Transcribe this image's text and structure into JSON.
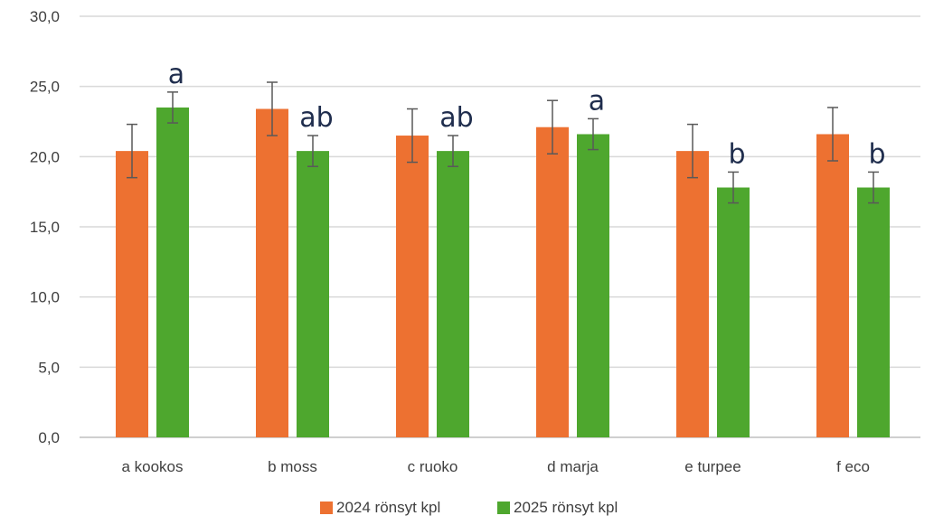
{
  "chart_data": {
    "type": "bar",
    "categories": [
      "a kookos",
      "b moss",
      "c ruoko",
      "d marja",
      "e turpee",
      "f eco"
    ],
    "series": [
      {
        "name": "2024 rönsyt kpl",
        "color": "#ed7131",
        "values": [
          20.4,
          23.4,
          21.5,
          22.1,
          20.4,
          21.6
        ],
        "error": [
          1.9,
          1.9,
          1.9,
          1.9,
          1.9,
          1.9
        ]
      },
      {
        "name": "2025 rönsyt kpl",
        "color": "#4ea72e",
        "values": [
          23.5,
          20.4,
          20.4,
          21.6,
          17.8,
          17.8
        ],
        "error": [
          1.1,
          1.1,
          1.1,
          1.1,
          1.1,
          1.1
        ]
      }
    ],
    "significance_letters": [
      "a",
      "ab",
      "ab",
      "a",
      "b",
      "b"
    ],
    "ylim": [
      0,
      30
    ],
    "yticks": [
      "0,0",
      "5,0",
      "10,0",
      "15,0",
      "20,0",
      "25,0",
      "30,0"
    ],
    "grid": true,
    "legend_position": "bottom"
  }
}
